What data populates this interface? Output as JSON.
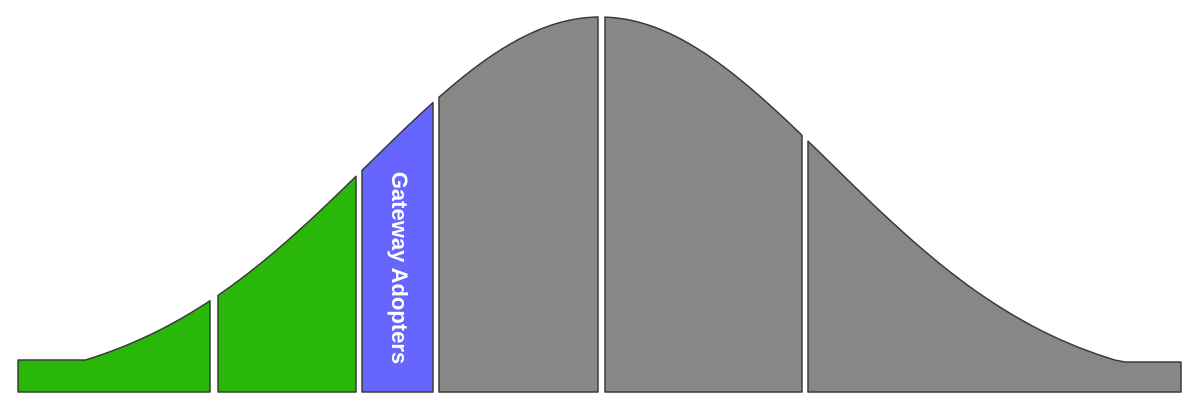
{
  "diagram": {
    "curve": "bell",
    "segments": [
      {
        "id": "segment-1",
        "color": "#29b80a",
        "label": ""
      },
      {
        "id": "segment-2",
        "color": "#29b80a",
        "label": ""
      },
      {
        "id": "segment-3",
        "color": "#6666ff",
        "label": "Gateway Adopters"
      },
      {
        "id": "segment-4",
        "color": "#878787",
        "label": ""
      },
      {
        "id": "segment-5",
        "color": "#878787",
        "label": ""
      },
      {
        "id": "segment-6",
        "color": "#878787",
        "label": ""
      }
    ]
  }
}
